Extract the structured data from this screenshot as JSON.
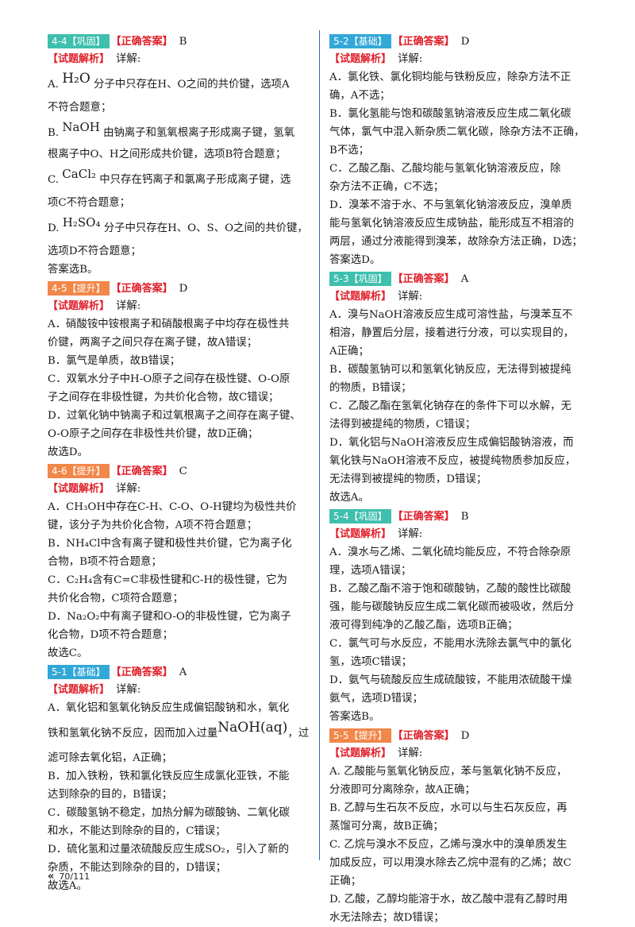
{
  "answer_label": "【正确答案】",
  "analysis_label": "【试题解析】",
  "detail": "详解:",
  "left": {
    "q1": {
      "tag": "4-4【巩固】",
      "answer": "B",
      "lineA1_pre": "A.",
      "lineA1_formula": "H₂O",
      "lineA1_post": "分子中只存在H、O之间的共价键，选项A",
      "lineA2": "不符合题意；",
      "lineB1_pre": "B.",
      "lineB1_formula": "NaOH",
      "lineB1_post": "由钠离子和氢氧根离子形成离子键，氢氧",
      "lineB2": "根离子中O、H之间形成共价键，选项B符合题意；",
      "lineC1_pre": "C.",
      "lineC1_formula": "CaCl₂",
      "lineC1_post": "中只存在钙离子和氯离子形成离子键，选",
      "lineC2": "项C不符合题意；",
      "lineD1_pre": "D.",
      "lineD1_formula": "H₂SO₄",
      "lineD1_post": "分子中只存在H、O、S、O之间的共价键，",
      "lineD2": "选项D不符合题意；",
      "end": "答案选B。"
    },
    "q2": {
      "tag": "4-5【提升】",
      "answer": "D",
      "lines": [
        "A．硝酸铵中铵根离子和硝酸根离子中均存在极性共",
        "价键，两离子之间只存在离子键，故A错误；",
        "B．氯气是单质，故B错误；",
        "C．双氧水分子中H-O原子之间存在极性键、O-O原",
        "子之间存在非极性键，为共价化合物，故C错误；",
        "D．过氧化钠中钠离子和过氧根离子之间存在离子键、",
        "O-O原子之间存在非极性共价键，故D正确；",
        "故选D。"
      ]
    },
    "q3": {
      "tag": "4-6【提升】",
      "answer": "C",
      "lines": [
        "A．CH₃OH中存在C-H、C-O、O-H键均为极性共价",
        "键，该分子为共价化合物，A项不符合题意；",
        "B．NH₄Cl中含有离子键和极性共价键，它为离子化",
        "合物，B项不符合题意；",
        "C．C₂H₄含有C=C非极性键和C-H的极性键，它为",
        "共价化合物，C项符合题意；",
        "D．Na₂O₂中有离子键和O-O的非极性键，它为离子",
        "化合物，D项不符合题意；",
        "故选C。"
      ]
    },
    "q4": {
      "tag": "5-1【基础】",
      "answer": "A",
      "line1": "A．氧化铝和氢氧化钠反应生成偏铝酸钠和水，氧化",
      "line2_pre": "铁和氢氧化钠不反应，因而加入过量",
      "line2_formula": "NaOH(aq)",
      "line2_post": "，过",
      "lines": [
        "滤可除去氧化铝，A正确；",
        "B．加入铁粉，铁和氯化铁反应生成氯化亚铁，不能",
        "达到除杂的目的，B错误；",
        "C．碳酸氢钠不稳定，加热分解为碳酸钠、二氧化碳",
        "和水，不能达到除杂的目的，C错误；",
        "D．硫化氢和过量浓硫酸反应生成SO₂，引入了新的",
        "杂质，不能达到除杂的目的，D错误；",
        "故选A。"
      ]
    }
  },
  "right": {
    "q5": {
      "tag": "5-2【基础】",
      "answer": "D",
      "lines": [
        "A．氯化铁、氯化铜均能与铁粉反应，除杂方法不正",
        "确，A不选；",
        "B．氯化氢能与饱和碳酸氢钠溶液反应生成二氧化碳",
        "气体，氯气中混入新杂质二氧化碳，除杂方法不正确，",
        "B不选；",
        "C．乙酸乙酯、乙酸均能与氢氧化钠溶液反应，除",
        "杂方法不正确，C不选；",
        "D．溴苯不溶于水、不与氢氧化钠溶液反应，溴单质",
        "能与氢氧化钠溶液反应生成钠盐，能形成互不相溶的",
        "两层，通过分液能得到溴苯，故除杂方法正确，D选；",
        "答案选D。"
      ]
    },
    "q6": {
      "tag": "5-3【巩固】",
      "answer": "A",
      "lines": [
        "A．溴与NaOH溶液反应生成可溶性盐，与溴苯互不",
        "相溶，静置后分层，接着进行分液，可以实现目的，",
        "A正确；",
        "B．碳酸氢钠可以和氢氧化钠反应，无法得到被提纯",
        "的物质，B错误；",
        "C．乙酸乙酯在氢氧化钠存在的条件下可以水解，无",
        "法得到被提纯的物质，C错误；",
        "D．氧化铝与NaOH溶液反应生成偏铝酸钠溶液，而",
        "氧化铁与NaOH溶液不反应，被提纯物质参加反应，",
        "无法得到被提纯的物质，D错误；",
        "故选A。"
      ]
    },
    "q7": {
      "tag": "5-4【巩固】",
      "answer": "B",
      "lines": [
        "A．溴水与乙烯、二氧化硫均能反应，不符合除杂原",
        "理，选项A错误；",
        "B．乙酸乙酯不溶于饱和碳酸钠，乙酸的酸性比碳酸",
        "强，能与碳酸钠反应生成二氧化碳而被吸收，然后分",
        "液可得到纯净的乙酸乙酯，选项B正确；",
        "C．氯气可与水反应，不能用水洗除去氯气中的氯化",
        "氢，选项C错误；",
        "D．氨气与硫酸反应生成硫酸铵，不能用浓硫酸干燥",
        "氨气，选项D错误；",
        "答案选B。"
      ]
    },
    "q8": {
      "tag": "5-5【提升】",
      "answer": "D",
      "lines": [
        "A. 乙酸能与氢氧化钠反应，苯与氢氧化钠不反应，",
        "分液即可分离除杂，故A正确；",
        "B. 乙醇与生石灰不反应，水可以与生石灰反应，再",
        "蒸馏可分离，故B正确；",
        "C. 乙烷与溴水不反应，乙烯与溴水中的溴单质发生",
        "加成反应，可以用溴水除去乙烷中混有的乙烯；故C",
        "正确；",
        "D. 乙酸，乙醇均能溶于水，故乙酸中混有乙醇时用",
        "水无法除去；故D错误；"
      ]
    }
  },
  "footer": {
    "chevron": "«",
    "page": "70/111"
  }
}
